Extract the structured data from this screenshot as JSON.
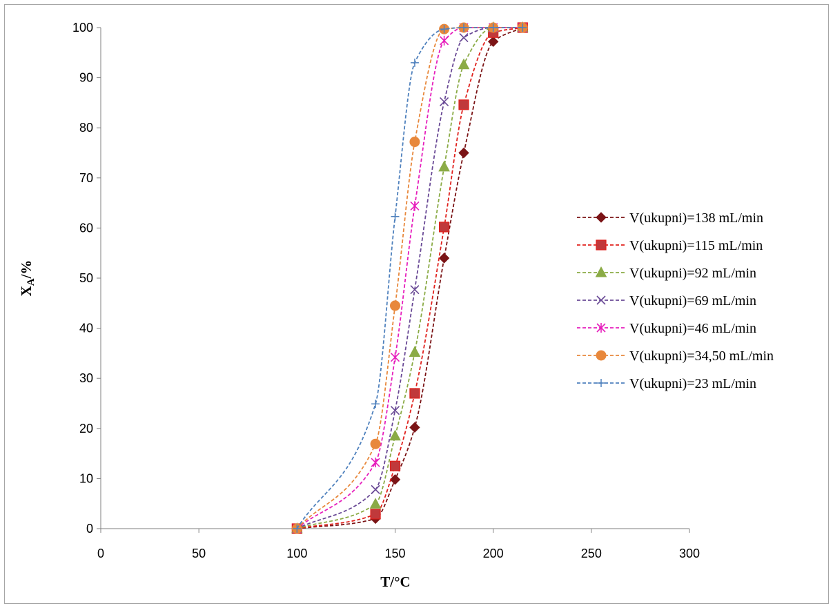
{
  "chart_data": {
    "type": "scatter",
    "title": "",
    "xlabel": "T/°C",
    "ylabel": {
      "main": "X",
      "sub": "A",
      "suffix": "/%"
    },
    "xlim": [
      0,
      300
    ],
    "ylim": [
      0,
      100
    ],
    "x_ticks": [
      0,
      50,
      100,
      150,
      200,
      250,
      300
    ],
    "y_ticks": [
      0,
      10,
      20,
      30,
      40,
      50,
      60,
      70,
      80,
      90,
      100
    ],
    "x_tick_labels": [
      "0",
      "50",
      "100",
      "150",
      "200",
      "250",
      "300"
    ],
    "y_tick_labels": [
      "0",
      "10",
      "20",
      "30",
      "40",
      "50",
      "60",
      "70",
      "80",
      "90",
      "100"
    ],
    "grid": false,
    "legend_position": "right",
    "line_style": "dashed smoothed",
    "series": [
      {
        "name": "V(ukupni)=138 mL/min",
        "color": "#7b1416",
        "marker": "diamond",
        "x": [
          100,
          140,
          150,
          160,
          175,
          185,
          200,
          215
        ],
        "y": [
          0,
          2,
          9.8,
          20.2,
          54,
          75,
          97.2,
          100
        ]
      },
      {
        "name": "V(ukupni)=115 mL/min",
        "color": "#e0201c",
        "marker_fill": "#c0393b",
        "marker": "square",
        "x": [
          100,
          140,
          150,
          160,
          175,
          185,
          200,
          215
        ],
        "y": [
          0,
          2.9,
          12.5,
          27,
          60.2,
          84.6,
          99,
          100
        ]
      },
      {
        "name": "V(ukupni)=92 mL/min",
        "color": "#8bab46",
        "marker": "triangle",
        "x": [
          100,
          140,
          150,
          160,
          175,
          185,
          200,
          215
        ],
        "y": [
          0,
          4.9,
          18.5,
          35.2,
          72.2,
          92.6,
          100,
          100
        ]
      },
      {
        "name": "V(ukupni)=69 mL/min",
        "color": "#6a4a96",
        "marker": "x",
        "x": [
          100,
          140,
          150,
          160,
          175,
          185,
          200,
          215
        ],
        "y": [
          0,
          7.8,
          23.6,
          47.7,
          85.2,
          98,
          100,
          100
        ]
      },
      {
        "name": "V(ukupni)=46 mL/min",
        "color": "#e61ebc",
        "marker": "star",
        "x": [
          100,
          140,
          150,
          160,
          175,
          185,
          200,
          215
        ],
        "y": [
          0,
          13.2,
          34.2,
          64.4,
          97.4,
          100,
          100,
          100
        ]
      },
      {
        "name": "V(ukupni)=34,50 mL/min",
        "color": "#e8883c",
        "marker": "circle",
        "x": [
          100,
          140,
          150,
          160,
          175,
          185,
          200,
          215
        ],
        "y": [
          0,
          16.9,
          44.5,
          77.2,
          99.7,
          100,
          100,
          100
        ]
      },
      {
        "name": "V(ukupni)=23 mL/min",
        "color": "#4f81bd",
        "marker": "plus",
        "x": [
          100,
          140,
          150,
          160,
          175,
          185,
          200,
          215
        ],
        "y": [
          0,
          24.9,
          62.3,
          93,
          99.7,
          100,
          100,
          100
        ]
      }
    ]
  }
}
